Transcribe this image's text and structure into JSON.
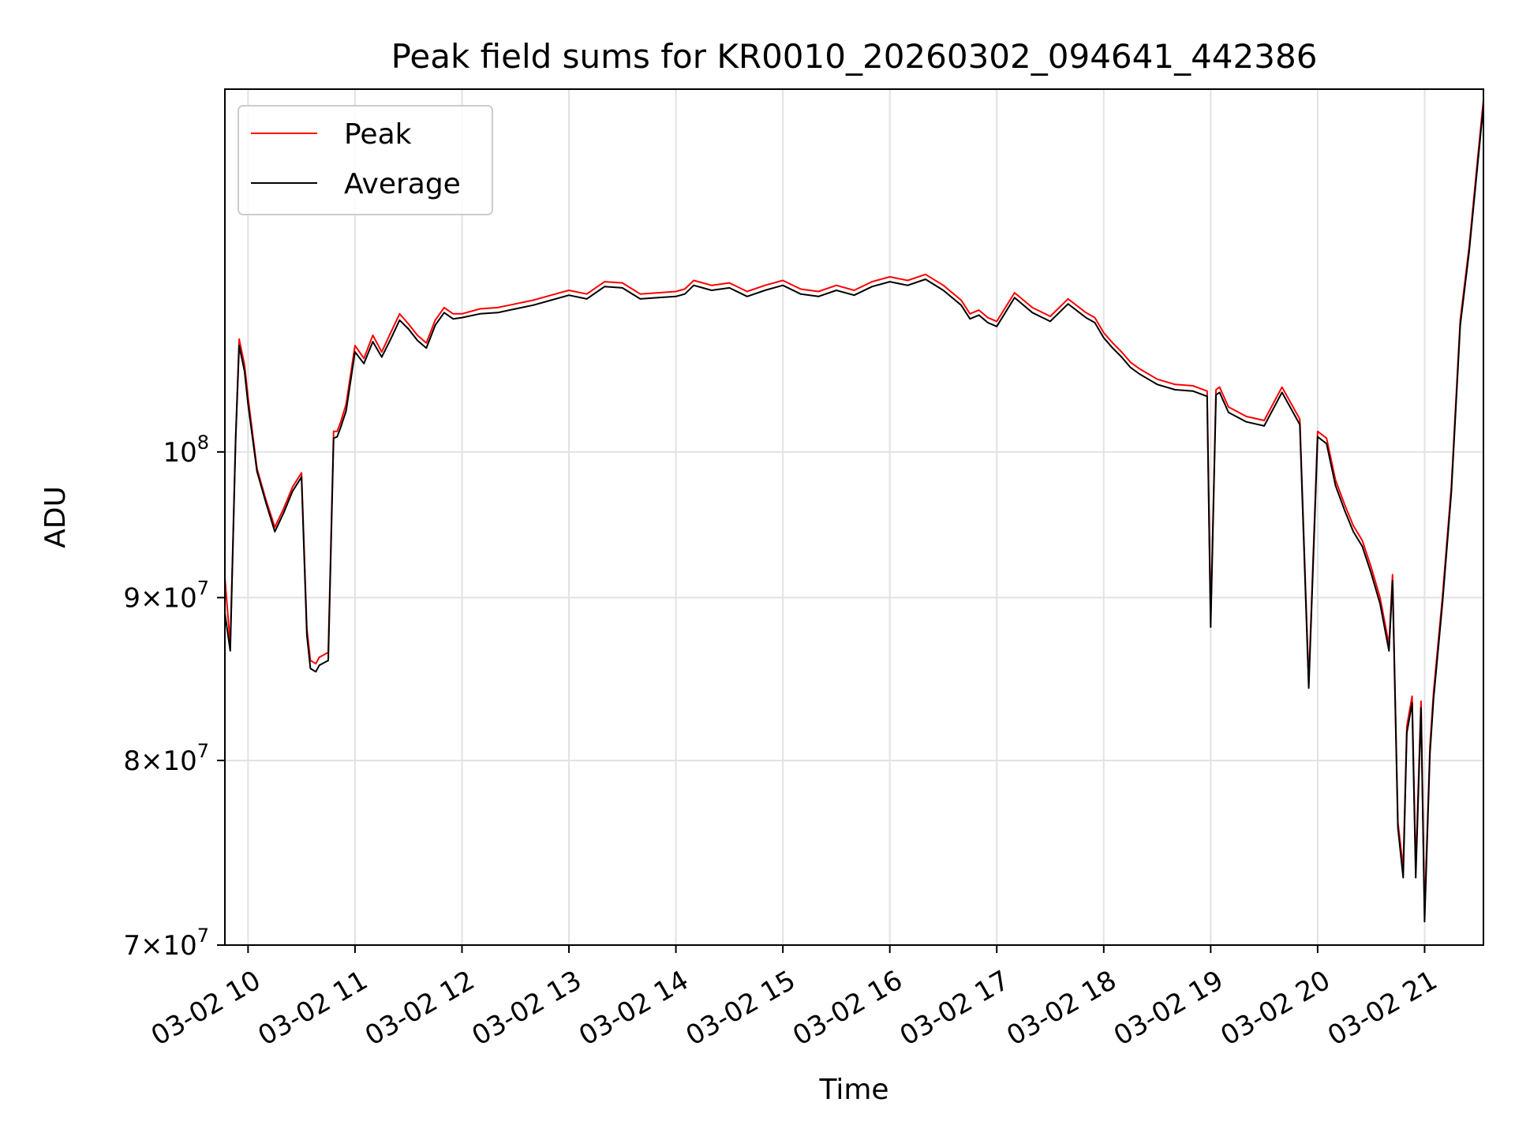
{
  "chart_data": {
    "type": "line",
    "title": "Peak field sums for KR0010_20260302_094641_442386",
    "xlabel": "Time",
    "ylabel": "ADU",
    "yscale": "log",
    "grid": true,
    "legend_position": "upper-left",
    "xlim": [
      "03-02 09:47",
      "03-02 21:33"
    ],
    "ylim": [
      70000000,
      130000000
    ],
    "x_ticks": [
      "03-02 10",
      "03-02 11",
      "03-02 12",
      "03-02 13",
      "03-02 14",
      "03-02 15",
      "03-02 16",
      "03-02 17",
      "03-02 18",
      "03-02 19",
      "03-02 20",
      "03-02 21"
    ],
    "y_ticks": [
      {
        "value": 70000000,
        "mantissa": "7",
        "base": "10",
        "exp": "7"
      },
      {
        "value": 80000000,
        "mantissa": "8",
        "base": "10",
        "exp": "7"
      },
      {
        "value": 90000000,
        "mantissa": "9",
        "base": "10",
        "exp": "7"
      },
      {
        "value": 100000000,
        "mantissa": "",
        "base": "10",
        "exp": "8"
      }
    ],
    "x": [
      "09:47",
      "09:50",
      "09:53",
      "09:55",
      "09:58",
      "10:00",
      "10:05",
      "10:10",
      "10:15",
      "10:20",
      "10:25",
      "10:30",
      "10:33",
      "10:35",
      "10:38",
      "10:40",
      "10:45",
      "10:48",
      "10:50",
      "10:52",
      "10:55",
      "11:00",
      "11:05",
      "11:10",
      "11:15",
      "11:20",
      "11:25",
      "11:30",
      "11:35",
      "11:40",
      "11:45",
      "11:50",
      "11:55",
      "12:00",
      "12:10",
      "12:20",
      "12:30",
      "12:40",
      "12:50",
      "13:00",
      "13:10",
      "13:20",
      "13:30",
      "13:40",
      "13:50",
      "14:00",
      "14:05",
      "14:10",
      "14:20",
      "14:30",
      "14:40",
      "14:50",
      "15:00",
      "15:10",
      "15:20",
      "15:30",
      "15:40",
      "15:50",
      "16:00",
      "16:10",
      "16:20",
      "16:30",
      "16:40",
      "16:45",
      "16:50",
      "16:55",
      "17:00",
      "17:10",
      "17:20",
      "17:30",
      "17:40",
      "17:50",
      "17:55",
      "18:00",
      "18:05",
      "18:10",
      "18:15",
      "18:20",
      "18:25",
      "18:30",
      "18:40",
      "18:50",
      "18:58",
      "19:00",
      "19:03",
      "19:05",
      "19:10",
      "19:20",
      "19:30",
      "19:40",
      "19:50",
      "19:55",
      "20:00",
      "20:05",
      "20:10",
      "20:15",
      "20:20",
      "20:25",
      "20:30",
      "20:35",
      "20:40",
      "20:42",
      "20:45",
      "20:48",
      "20:50",
      "20:53",
      "20:55",
      "20:58",
      "21:00",
      "21:03",
      "21:05",
      "21:10",
      "21:15",
      "21:20",
      "21:25",
      "21:30",
      "21:33"
    ],
    "series": [
      {
        "name": "Peak",
        "color": "#ff0000",
        "values": [
          91300000,
          87000000,
          101000000,
          108500000,
          106500000,
          104000000,
          98800000,
          96600000,
          94700000,
          96000000,
          97500000,
          98500000,
          88000000,
          86000000,
          85800000,
          86200000,
          86500000,
          101500000,
          101500000,
          102200000,
          103500000,
          108000000,
          107000000,
          108800000,
          107500000,
          109000000,
          110500000,
          109700000,
          108800000,
          108200000,
          110000000,
          111000000,
          110500000,
          110500000,
          110900000,
          111000000,
          111300000,
          111600000,
          112000000,
          112400000,
          112100000,
          113100000,
          113000000,
          112100000,
          112200000,
          112300000,
          112500000,
          113200000,
          112800000,
          113000000,
          112300000,
          112800000,
          113200000,
          112500000,
          112300000,
          112800000,
          112400000,
          113100000,
          113500000,
          113200000,
          113700000,
          112800000,
          111600000,
          110500000,
          110800000,
          110200000,
          109900000,
          112200000,
          111000000,
          110300000,
          111700000,
          110600000,
          110200000,
          109000000,
          108200000,
          107500000,
          106700000,
          106200000,
          105800000,
          105400000,
          105000000,
          104900000,
          104500000,
          88500000,
          104600000,
          104800000,
          103300000,
          102600000,
          102300000,
          104800000,
          102400000,
          84700000,
          101500000,
          101000000,
          98000000,
          96300000,
          94800000,
          93800000,
          92000000,
          90000000,
          87000000,
          91500000,
          76500000,
          74000000,
          82000000,
          83800000,
          74000000,
          83500000,
          71600000,
          80800000,
          84000000,
          90000000,
          97500000,
          110000000,
          116000000,
          124000000,
          129000000
        ]
      },
      {
        "name": "Average",
        "color": "#000000",
        "values": [
          89000000,
          86600000,
          100800000,
          108000000,
          106000000,
          103500000,
          98600000,
          96400000,
          94400000,
          95700000,
          97200000,
          98200000,
          87600000,
          85500000,
          85300000,
          85700000,
          86000000,
          101000000,
          101100000,
          101800000,
          103000000,
          107500000,
          106600000,
          108300000,
          107100000,
          108500000,
          110000000,
          109300000,
          108400000,
          107800000,
          109600000,
          110600000,
          110100000,
          110200000,
          110500000,
          110600000,
          110900000,
          111200000,
          111600000,
          112000000,
          111700000,
          112700000,
          112600000,
          111700000,
          111800000,
          111900000,
          112100000,
          112800000,
          112400000,
          112600000,
          111900000,
          112400000,
          112800000,
          112100000,
          111900000,
          112400000,
          112000000,
          112700000,
          113100000,
          112800000,
          113300000,
          112400000,
          111200000,
          110100000,
          110400000,
          109800000,
          109500000,
          111800000,
          110600000,
          109900000,
          111300000,
          110200000,
          109800000,
          108600000,
          107800000,
          107100000,
          106300000,
          105800000,
          105400000,
          105000000,
          104600000,
          104500000,
          104100000,
          88100000,
          104200000,
          104400000,
          102900000,
          102200000,
          101900000,
          104400000,
          102000000,
          84300000,
          101100000,
          100600000,
          97600000,
          95900000,
          94400000,
          93400000,
          91600000,
          89600000,
          86600000,
          91100000,
          76200000,
          73500000,
          81600000,
          83400000,
          73500000,
          83100000,
          71200000,
          80400000,
          83600000,
          89600000,
          97100000,
          109600000,
          115600000,
          123500000,
          128500000
        ]
      }
    ]
  }
}
